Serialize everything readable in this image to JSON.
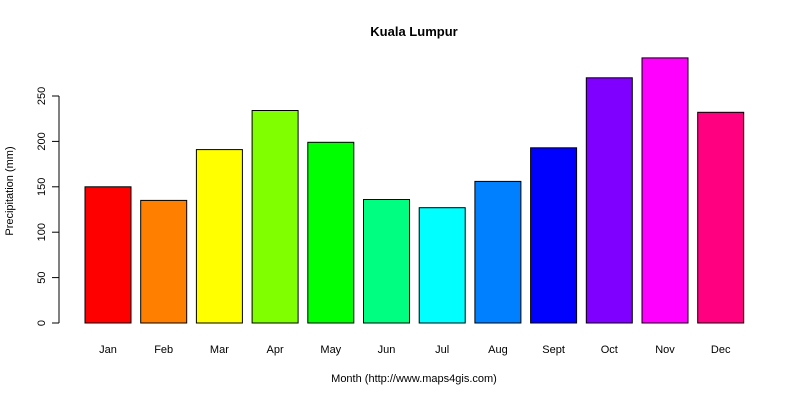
{
  "chart_data": {
    "type": "bar",
    "title": "Kuala Lumpur",
    "xlabel": "Month (http://www.maps4gis.com)",
    "ylabel": "Precipitation (mm)",
    "categories": [
      "Jan",
      "Feb",
      "Mar",
      "Apr",
      "May",
      "Jun",
      "Jul",
      "Aug",
      "Sept",
      "Oct",
      "Nov",
      "Dec"
    ],
    "values": [
      150,
      135,
      191,
      234,
      199,
      136,
      127,
      156,
      193,
      270,
      292,
      232
    ],
    "colors": [
      "#FF0000",
      "#FF8000",
      "#FFFF00",
      "#80FF00",
      "#00FF00",
      "#00FF80",
      "#00FFFF",
      "#0080FF",
      "#0000FF",
      "#8000FF",
      "#FF00FF",
      "#FF0080"
    ],
    "yticks": [
      "0",
      "50",
      "100",
      "150",
      "200",
      "250"
    ],
    "ylim": [
      0,
      300
    ],
    "grid": false,
    "legend": "none"
  }
}
